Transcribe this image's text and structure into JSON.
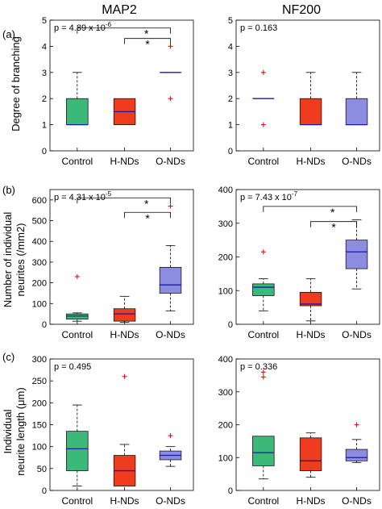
{
  "figure": {
    "column_titles": [
      "MAP2",
      "NF200"
    ],
    "row_labels": [
      "(a)",
      "(b)",
      "(c)"
    ],
    "ylabels": [
      [
        "Degree of branching"
      ],
      [
        "Number of individual",
        "neurites (/mm2)"
      ],
      [
        "Individual",
        "neurite length (μm)"
      ]
    ]
  },
  "colors": {
    "Control": "#3cb878",
    "H-NDs": "#f03c1e",
    "O-NDs": "#8c8ce0",
    "median": "#1a1aa8",
    "outlier": "#e01010"
  },
  "chart_data": [
    {
      "type": "box",
      "title": "MAP2",
      "panel_label": "(a)",
      "ylabel": "Degree of branching",
      "categories": [
        "Control",
        "H-NDs",
        "O-NDs"
      ],
      "ylim": [
        0,
        5
      ],
      "yticks": [
        0,
        1,
        2,
        3,
        4,
        5
      ],
      "annotation": "p = 4.89 x 10",
      "annotation_exp": "-6",
      "significance": [
        {
          "from": 0,
          "to": 2,
          "label": "*",
          "y": 4.7
        },
        {
          "from": 1,
          "to": 2,
          "label": "*",
          "y": 4.3
        }
      ],
      "boxes": [
        {
          "category": "Control",
          "min": 1,
          "q1": 1,
          "median": 1,
          "q3": 2,
          "max": 3,
          "outliers": []
        },
        {
          "category": "H-NDs",
          "min": 1,
          "q1": 1,
          "median": 1.5,
          "q3": 2,
          "max": 2,
          "outliers": []
        },
        {
          "category": "O-NDs",
          "min": 3,
          "q1": 3,
          "median": 3,
          "q3": 3,
          "max": 3,
          "outliers": [
            4,
            2
          ]
        }
      ]
    },
    {
      "type": "box",
      "title": "NF200",
      "panel_label": "",
      "ylabel": "",
      "categories": [
        "Control",
        "H-NDs",
        "O-NDs"
      ],
      "ylim": [
        0,
        5
      ],
      "yticks": [
        0,
        1,
        2,
        3,
        4,
        5
      ],
      "annotation": "p = 0.163",
      "annotation_exp": "",
      "significance": [],
      "boxes": [
        {
          "category": "Control",
          "min": 2,
          "q1": 2,
          "median": 2,
          "q3": 2,
          "max": 2,
          "outliers": [
            3,
            1
          ]
        },
        {
          "category": "H-NDs",
          "min": 1,
          "q1": 1,
          "median": 1,
          "q3": 2,
          "max": 3,
          "outliers": []
        },
        {
          "category": "O-NDs",
          "min": 1,
          "q1": 1,
          "median": 1,
          "q3": 2,
          "max": 3,
          "outliers": []
        }
      ]
    },
    {
      "type": "box",
      "title": "",
      "panel_label": "(b)",
      "ylabel": "Number of individual neurites (/mm2)",
      "categories": [
        "Control",
        "H-NDs",
        "O-NDs"
      ],
      "ylim": [
        0,
        650
      ],
      "yticks": [
        0,
        100,
        200,
        300,
        400,
        500,
        600
      ],
      "annotation": "p = 4.31 x 10",
      "annotation_exp": "-5",
      "significance": [
        {
          "from": 0,
          "to": 2,
          "label": "*",
          "y": 610
        },
        {
          "from": 1,
          "to": 2,
          "label": "*",
          "y": 540
        }
      ],
      "boxes": [
        {
          "category": "Control",
          "min": 15,
          "q1": 25,
          "median": 40,
          "q3": 50,
          "max": 55,
          "outliers": [
            230
          ]
        },
        {
          "category": "H-NDs",
          "min": 10,
          "q1": 15,
          "median": 50,
          "q3": 75,
          "max": 135,
          "outliers": []
        },
        {
          "category": "O-NDs",
          "min": 65,
          "q1": 150,
          "median": 190,
          "q3": 275,
          "max": 380,
          "outliers": [
            570
          ]
        }
      ]
    },
    {
      "type": "box",
      "title": "",
      "panel_label": "",
      "ylabel": "",
      "categories": [
        "Control",
        "H-NDs",
        "O-NDs"
      ],
      "ylim": [
        0,
        400
      ],
      "yticks": [
        0,
        100,
        200,
        300,
        400
      ],
      "annotation": "p = 7.43 x 10",
      "annotation_exp": "-7",
      "significance": [
        {
          "from": 0,
          "to": 2,
          "label": "*",
          "y": 350
        },
        {
          "from": 1,
          "to": 2,
          "label": "*",
          "y": 305
        }
      ],
      "boxes": [
        {
          "category": "Control",
          "min": 40,
          "q1": 85,
          "median": 110,
          "q3": 120,
          "max": 135,
          "outliers": [
            215
          ]
        },
        {
          "category": "H-NDs",
          "min": 10,
          "q1": 55,
          "median": 60,
          "q3": 95,
          "max": 135,
          "outliers": []
        },
        {
          "category": "O-NDs",
          "min": 105,
          "q1": 165,
          "median": 215,
          "q3": 250,
          "max": 310,
          "outliers": []
        }
      ]
    },
    {
      "type": "box",
      "title": "",
      "panel_label": "(c)",
      "ylabel": "Individual neurite length (μm)",
      "categories": [
        "Control",
        "H-NDs",
        "O-NDs"
      ],
      "ylim": [
        0,
        300
      ],
      "yticks": [
        0,
        50,
        100,
        150,
        200,
        250,
        300
      ],
      "annotation": "p = 0.495",
      "annotation_exp": "",
      "significance": [],
      "boxes": [
        {
          "category": "Control",
          "min": 10,
          "q1": 45,
          "median": 95,
          "q3": 135,
          "max": 195,
          "outliers": []
        },
        {
          "category": "H-NDs",
          "min": 10,
          "q1": 10,
          "median": 45,
          "q3": 80,
          "max": 105,
          "outliers": [
            260
          ]
        },
        {
          "category": "O-NDs",
          "min": 55,
          "q1": 70,
          "median": 80,
          "q3": 90,
          "max": 100,
          "outliers": [
            125
          ]
        }
      ]
    },
    {
      "type": "box",
      "title": "",
      "panel_label": "",
      "ylabel": "",
      "categories": [
        "Control",
        "H-NDs",
        "O-NDs"
      ],
      "ylim": [
        0,
        400
      ],
      "yticks": [
        0,
        100,
        200,
        300,
        400
      ],
      "annotation": "p = 0.336",
      "annotation_exp": "",
      "significance": [],
      "boxes": [
        {
          "category": "Control",
          "min": 35,
          "q1": 75,
          "median": 115,
          "q3": 165,
          "max": 165,
          "outliers": [
            345,
            360
          ]
        },
        {
          "category": "H-NDs",
          "min": 40,
          "q1": 60,
          "median": 90,
          "q3": 160,
          "max": 175,
          "outliers": []
        },
        {
          "category": "O-NDs",
          "min": 85,
          "q1": 90,
          "median": 100,
          "q3": 125,
          "max": 155,
          "outliers": [
            200
          ]
        }
      ]
    }
  ]
}
